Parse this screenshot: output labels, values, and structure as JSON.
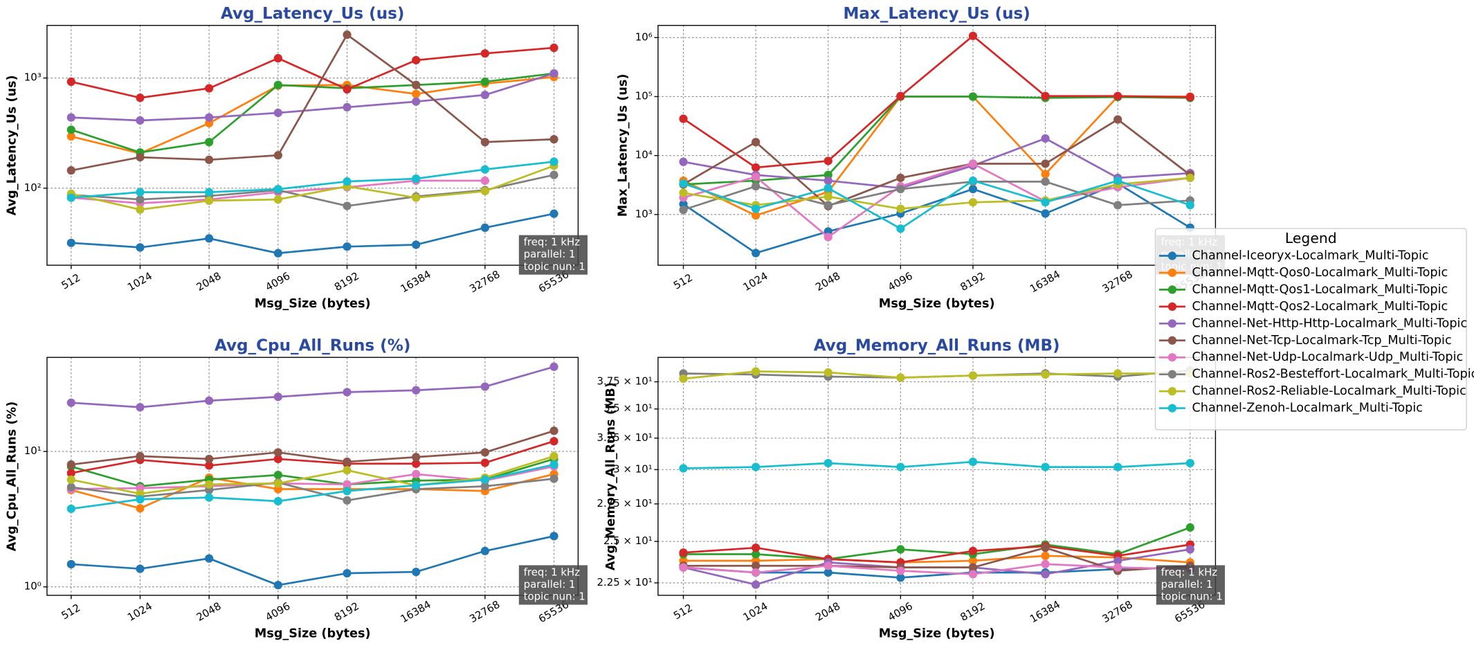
{
  "chart_data": [
    {
      "type": "line",
      "title": "Avg_Latency_Us  (us)",
      "xlabel": "Msg_Size (bytes)",
      "ylabel": "Avg_Latency_Us (us)",
      "categories": [
        "512",
        "1024",
        "2048",
        "4096",
        "8192",
        "16384",
        "32768",
        "65536"
      ],
      "log_y": true,
      "grid": true,
      "ylim": [
        20,
        3000
      ],
      "yticks": [
        {
          "value": 100,
          "label": "10²"
        },
        {
          "value": 1000,
          "label": "10³"
        }
      ],
      "annotation": [
        "freq: 1 kHz",
        "parallel: 1",
        "topic nun: 1"
      ],
      "series": [
        {
          "color": "#1f77b4",
          "values": [
            31.9,
            29,
            35,
            25.7,
            29.5,
            30.7,
            43.8,
            58.7
          ]
        },
        {
          "color": "#ff7f0e",
          "values": [
            295,
            207,
            389,
            853,
            864,
            716,
            889,
            1020
          ]
        },
        {
          "color": "#2ca02c",
          "values": [
            339,
            211,
            262,
            864,
            806,
            864,
            925,
            1100
          ]
        },
        {
          "color": "#d62728",
          "values": [
            925,
            661,
            806,
            1510,
            789,
            1450,
            1670,
            1880
          ]
        },
        {
          "color": "#9467bd",
          "values": [
            438,
            412,
            438,
            483,
            543,
            611,
            702,
            1100
          ]
        },
        {
          "color": "#8c564b",
          "values": [
            145,
            191,
            181,
            199,
            2470,
            864,
            262,
            278
          ]
        },
        {
          "color": "#e377c2",
          "values": [
            82,
            73,
            79,
            92,
            102,
            117,
            117,
            null
          ]
        },
        {
          "color": "#7f7f7f",
          "values": [
            87,
            79,
            85,
            96,
            69,
            84,
            96,
            132
          ]
        },
        {
          "color": "#bcbd22",
          "values": [
            89,
            64,
            77,
            79,
            104,
            82,
            94,
            160
          ]
        },
        {
          "color": "#17becf",
          "values": [
            82,
            92,
            92,
            98,
            115,
            122,
            148,
            174
          ]
        }
      ]
    },
    {
      "type": "line",
      "title": "Max_Latency_Us  (us)",
      "xlabel": "Msg_Size (bytes)",
      "ylabel": "Max_Latency_Us (us)",
      "categories": [
        "512",
        "1024",
        "2048",
        "4096",
        "8192",
        "16384",
        "32768",
        "65536"
      ],
      "log_y": true,
      "grid": true,
      "ylim": [
        138,
        1610000
      ],
      "yticks": [
        {
          "value": 1000,
          "label": "10³"
        },
        {
          "value": 10000,
          "label": "10⁴"
        },
        {
          "value": 100000,
          "label": "10⁵"
        },
        {
          "value": 1000000,
          "label": "10⁶"
        }
      ],
      "annotation": [
        "freq: 1 kHz",
        "parallel: 1",
        "topic nun: 1"
      ],
      "legend_title": "Legend",
      "legend": "right",
      "series": [
        {
          "name": "Channel-Iceoryx-Localmark_Multi-Topic",
          "color": "#1f77b4",
          "values": [
            1500,
            222,
            516,
            1040,
            2700,
            1040,
            3360,
            598
          ]
        },
        {
          "name": "Channel-Mqtt-Qos0-Localmark_Multi-Topic",
          "color": "#ff7f0e",
          "values": [
            3750,
            963,
            2420,
            100000,
            100000,
            4850,
            100000,
            100000
          ]
        },
        {
          "name": "Channel-Mqtt-Qos1-Localmark_Multi-Topic",
          "color": "#2ca02c",
          "values": [
            3240,
            3750,
            4680,
            100000,
            100000,
            95000,
            98000,
            95000
          ]
        },
        {
          "name": "Channel-Mqtt-Qos2-Localmark_Multi-Topic",
          "color": "#d62728",
          "values": [
            42000,
            6270,
            8100,
            102000,
            1070000,
            102000,
            102000,
            98000
          ]
        },
        {
          "name": "Channel-Net-Http-Http-Localmark_Multi-Topic",
          "color": "#9467bd",
          "values": [
            7820,
            4680,
            3750,
            2800,
            6750,
            19500,
            4180,
            5030
          ]
        },
        {
          "name": "Channel-Net-Tcp-Localmark-Tcp_Multi-Topic",
          "color": "#8c564b",
          "values": [
            3240,
            16900,
            1390,
            4180,
            7270,
            7270,
            40900,
            4680
          ]
        },
        {
          "name": "Channel-Net-Udp-Localmark-Udp_Multi-Topic",
          "color": "#e377c2",
          "values": [
            1940,
            4350,
            414,
            3010,
            7270,
            1670,
            2900,
            4180
          ]
        },
        {
          "name": "Channel-Ros2-Besteffort-Localmark_Multi-Topic",
          "color": "#7f7f7f",
          "values": [
            1200,
            3010,
            1440,
            2700,
            3610,
            3610,
            1440,
            1730
          ]
        },
        {
          "name": "Channel-Ros2-Reliable-Localmark_Multi-Topic",
          "color": "#bcbd22",
          "values": [
            2330,
            1440,
            2010,
            1250,
            1610,
            1730,
            3240,
            4180
          ]
        },
        {
          "name": "Channel-Zenoh-Localmark_Multi-Topic",
          "color": "#17becf",
          "values": [
            3360,
            1250,
            2800,
            576,
            3750,
            1610,
            3750,
            1440
          ]
        }
      ]
    },
    {
      "type": "line",
      "title": "Avg_Cpu_All_Runs  (%)",
      "xlabel": "Msg_Size (bytes)",
      "ylabel": "Avg_Cpu_All_Runs (%)",
      "categories": [
        "512",
        "1024",
        "2048",
        "4096",
        "8192",
        "16384",
        "32768",
        "65536"
      ],
      "log_y": true,
      "grid": true,
      "ylim": [
        0.866,
        49.5
      ],
      "yticks": [
        {
          "value": 1,
          "label": "10⁰"
        },
        {
          "value": 10,
          "label": "10¹"
        }
      ],
      "annotation": [
        "freq: 1 kHz",
        "parallel: 1",
        "topic nun: 1"
      ],
      "series": [
        {
          "color": "#1f77b4",
          "values": [
            1.47,
            1.36,
            1.62,
            1.03,
            1.26,
            1.29,
            1.84,
            2.37
          ]
        },
        {
          "color": "#ff7f0e",
          "values": [
            5.19,
            3.8,
            6.4,
            5.27,
            5.27,
            5.27,
            5.1,
            6.8
          ]
        },
        {
          "color": "#2ca02c",
          "values": [
            7.74,
            5.53,
            6.19,
            6.7,
            5.71,
            6.09,
            6.19,
            8.8
          ]
        },
        {
          "color": "#d62728",
          "values": [
            6.92,
            8.66,
            7.87,
            8.8,
            8.12,
            8.12,
            8.25,
            11.9
          ]
        },
        {
          "color": "#9467bd",
          "values": [
            22.9,
            21.2,
            23.7,
            25.3,
            27.4,
            28.3,
            30.1,
            42.2
          ]
        },
        {
          "color": "#8c564b",
          "values": [
            8.0,
            9.23,
            8.8,
            9.84,
            8.39,
            9.08,
            9.84,
            14.2
          ]
        },
        {
          "color": "#e377c2",
          "values": [
            5.27,
            5.36,
            5.53,
            5.81,
            5.71,
            6.8,
            6.1,
            7.74
          ]
        },
        {
          "color": "#7f7f7f",
          "values": [
            5.45,
            4.64,
            5.19,
            5.9,
            4.35,
            5.27,
            5.53,
            6.29
          ]
        },
        {
          "color": "#bcbd22",
          "values": [
            6.19,
            4.87,
            5.71,
            5.81,
            7.26,
            5.62,
            6.4,
            9.23
          ]
        },
        {
          "color": "#17becf",
          "values": [
            3.77,
            4.43,
            4.57,
            4.29,
            5.1,
            5.62,
            6.19,
            8.0
          ]
        }
      ]
    },
    {
      "type": "line",
      "title": "Avg_Memory_All_Runs  (MB)",
      "xlabel": "Msg_Size (bytes)",
      "ylabel": "Avg_Memory_All_Runs (MB)",
      "categories": [
        "512",
        "1024",
        "2048",
        "4096",
        "8192",
        "16384",
        "32768",
        "65536"
      ],
      "log_y": true,
      "grid": true,
      "ylim": [
        21.8,
        39.9
      ],
      "yticks": [
        {
          "value": 22.5,
          "label": "2.25 × 10¹"
        },
        {
          "value": 25,
          "label": "2.5 × 10¹"
        },
        {
          "value": 27.5,
          "label": "2.75 × 10¹"
        },
        {
          "value": 30,
          "label": "3 × 10¹"
        },
        {
          "value": 32.5,
          "label": "3.25 × 10¹"
        },
        {
          "value": 35,
          "label": "3.5 × 10¹"
        },
        {
          "value": 37.5,
          "label": "3.75 × 10¹"
        }
      ],
      "annotation": [
        "freq: 1 kHz",
        "parallel: 1",
        "topic nun: 1"
      ],
      "series": [
        {
          "color": "#1f77b4",
          "values": [
            23.4,
            23.1,
            23.1,
            22.8,
            23.1,
            23.1,
            23.3,
            23.4
          ]
        },
        {
          "color": "#ff7f0e",
          "values": [
            23.8,
            23.8,
            23.9,
            23.7,
            23.8,
            24.1,
            24.0,
            23.7
          ]
        },
        {
          "color": "#2ca02c",
          "values": [
            24.2,
            24.2,
            23.9,
            24.5,
            24.2,
            24.8,
            24.2,
            25.9
          ]
        },
        {
          "color": "#d62728",
          "values": [
            24.3,
            24.6,
            23.9,
            23.7,
            24.4,
            24.7,
            24.1,
            24.8
          ]
        },
        {
          "color": "#9467bd",
          "values": [
            23.4,
            22.4,
            23.7,
            23.4,
            23.4,
            23.0,
            23.8,
            24.5
          ]
        },
        {
          "color": "#8c564b",
          "values": [
            23.5,
            23.5,
            23.5,
            23.4,
            23.4,
            24.6,
            23.2,
            23.5
          ]
        },
        {
          "color": "#e377c2",
          "values": [
            23.4,
            23.1,
            23.5,
            23.2,
            23.0,
            23.6,
            23.4,
            23.3
          ]
        },
        {
          "color": "#7f7f7f",
          "values": [
            38.3,
            38.2,
            38.0,
            37.9,
            38.1,
            38.3,
            38.0,
            38.6
          ]
        },
        {
          "color": "#bcbd22",
          "values": [
            37.8,
            38.5,
            38.4,
            37.9,
            38.1,
            38.2,
            38.3,
            38.3
          ]
        },
        {
          "color": "#17becf",
          "values": [
            30.1,
            30.2,
            30.5,
            30.2,
            30.6,
            30.2,
            30.2,
            30.5
          ]
        }
      ]
    }
  ]
}
